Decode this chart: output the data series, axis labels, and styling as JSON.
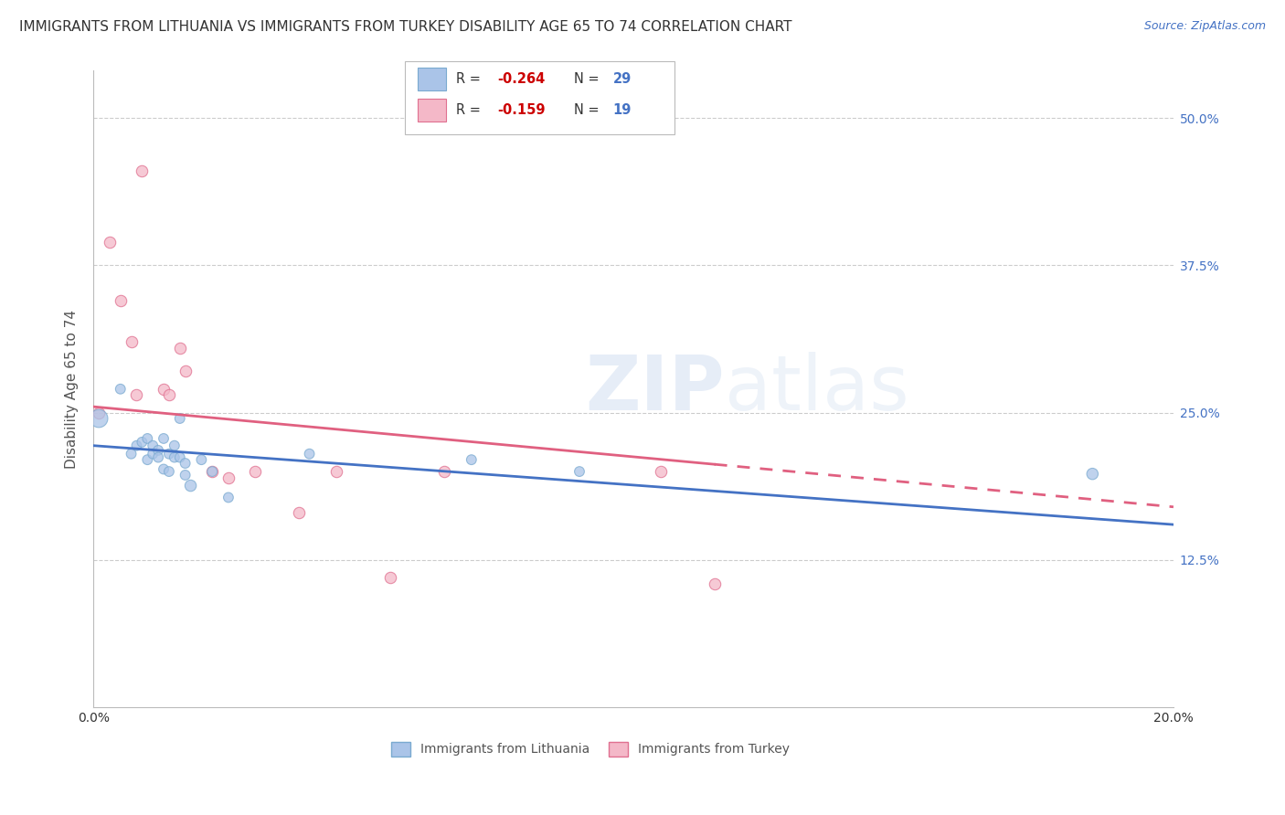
{
  "title": "IMMIGRANTS FROM LITHUANIA VS IMMIGRANTS FROM TURKEY DISABILITY AGE 65 TO 74 CORRELATION CHART",
  "source": "Source: ZipAtlas.com",
  "ylabel": "Disability Age 65 to 74",
  "xlim": [
    0.0,
    0.2
  ],
  "ylim": [
    0.0,
    0.5
  ],
  "ytick_positions": [
    0.125,
    0.25,
    0.375,
    0.5
  ],
  "ytick_labels": [
    "12.5%",
    "25.0%",
    "37.5%",
    "50.0%"
  ],
  "grid_color": "#cccccc",
  "background_color": "#ffffff",
  "lithuania_x": [
    0.001,
    0.005,
    0.007,
    0.008,
    0.009,
    0.01,
    0.01,
    0.011,
    0.011,
    0.012,
    0.012,
    0.013,
    0.013,
    0.014,
    0.014,
    0.015,
    0.015,
    0.016,
    0.016,
    0.017,
    0.017,
    0.018,
    0.02,
    0.022,
    0.025,
    0.04,
    0.07,
    0.09,
    0.185
  ],
  "lithuania_y": [
    0.245,
    0.27,
    0.215,
    0.222,
    0.225,
    0.21,
    0.228,
    0.222,
    0.215,
    0.218,
    0.212,
    0.228,
    0.202,
    0.215,
    0.2,
    0.222,
    0.212,
    0.245,
    0.212,
    0.207,
    0.197,
    0.188,
    0.21,
    0.2,
    0.178,
    0.215,
    0.21,
    0.2,
    0.198
  ],
  "lithuania_sizes": [
    200,
    60,
    60,
    60,
    60,
    60,
    60,
    60,
    60,
    60,
    60,
    60,
    60,
    60,
    60,
    60,
    60,
    60,
    60,
    60,
    60,
    80,
    60,
    60,
    60,
    60,
    60,
    60,
    80
  ],
  "lithuania_color": "#aac4e8",
  "lithuania_edge_color": "#7aaad0",
  "lithuania_alpha": 0.75,
  "lithuania_R": -0.264,
  "lithuania_N": 29,
  "turkey_x": [
    0.001,
    0.003,
    0.005,
    0.007,
    0.008,
    0.009,
    0.013,
    0.014,
    0.016,
    0.017,
    0.022,
    0.025,
    0.03,
    0.038,
    0.045,
    0.055,
    0.065,
    0.105,
    0.115
  ],
  "turkey_y": [
    0.25,
    0.395,
    0.345,
    0.31,
    0.265,
    0.455,
    0.27,
    0.265,
    0.305,
    0.285,
    0.2,
    0.195,
    0.2,
    0.165,
    0.2,
    0.11,
    0.2,
    0.2,
    0.105
  ],
  "turkey_color": "#f4b8c8",
  "turkey_edge_color": "#e07090",
  "turkey_alpha": 0.75,
  "turkey_R": -0.159,
  "turkey_N": 19,
  "line_lith_color": "#4472c4",
  "line_turk_color": "#e06080",
  "line_width": 2.0,
  "legend_R_color": "#cc0000",
  "legend_N_color": "#4472c4",
  "title_fontsize": 11,
  "axis_label_fontsize": 11,
  "tick_fontsize": 10,
  "source_fontsize": 9,
  "lith_line_x0": 0.0,
  "lith_line_y0": 0.222,
  "lith_line_x1": 0.2,
  "lith_line_y1": 0.155,
  "turk_line_x0": 0.0,
  "turk_line_y0": 0.255,
  "turk_line_x1": 0.2,
  "turk_line_y1": 0.17
}
